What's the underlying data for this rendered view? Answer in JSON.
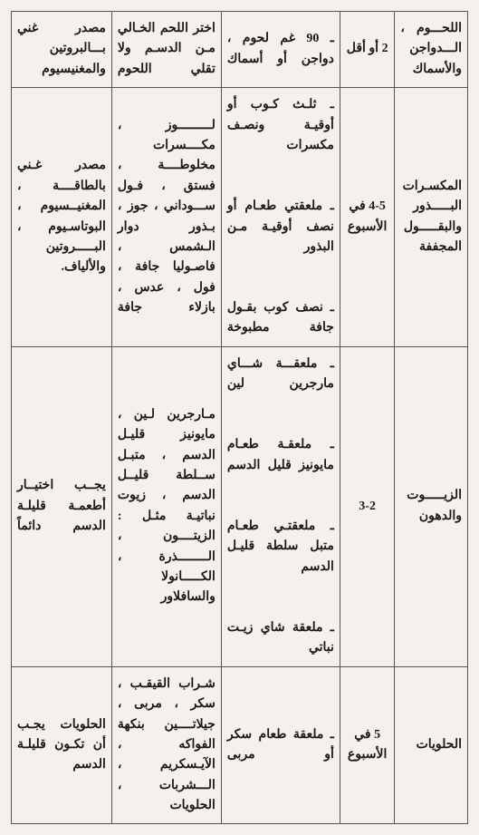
{
  "rows": [
    {
      "c1": "اللحـــوم ، الـــدواجن والأسماك",
      "c2": "2 أو أقل",
      "c3": "ـ 90 غم لحوم ، دواجن أو أسماك",
      "c4": "اختر اللحم الخـالي مـن الدسـم ولا تقلي اللحوم",
      "c5": "مصدر غني بـــالبروتين والمغنيسيوم"
    },
    {
      "c1": "المكسـرات البـــــذور والبقـــــول المجففة",
      "c2": "4-5 في الأسبوع",
      "c3": "ـ ثلـث كـوب أو أوقيـة ونصـف مكسرات\n\nـ ملعقتي طعـام أو نصف أوقيـة مـن البذور\n\nـ نصف كوب بقـول جافة مطبوخة",
      "c4": "لـــــــــوز ، مكــــسرات مخلوطــــة ، فستق ، فـول ســـوداني ، جوز ، بـذور دوار الـشمس ، فاصـوليا جافة ، فول ، عدس ، بازلاء جافة",
      "c5": "مصدر غـني بالطاقــــة ، المغنيــسيوم ، البوتاسـيوم ، البـــــروتين والألياف."
    },
    {
      "c1": "الزيـــــوت والدهون",
      "c2": "3-2",
      "c3": "ـ ملعقـــة شـــاي مارجرين لين\n\nـ ملعقـة طعـام مايونيز قليل الدسم\n\nـ ملعقتـي طعـام متبل سلطة قليـل الدسم\n\nـ ملعقة شاي زيـت نباتي",
      "c4": "مـارجرين لـين ، مايونيز قليـل الدسم ، متبـل ســلطة قليــل الدسم ، زيوت نباتيـة مثـل : الزيتــــون ، الــــــــذرة ، الكـــــانولا والسافلاور",
      "c5": "يجــب اختيــار أطعمـة قليلـة الدسم دائماً"
    },
    {
      "c1": "الحلويات",
      "c2": "5 في الأسبوع",
      "c3": "ـ ملعقة طعام سكر أو مربى",
      "c4": "شـراب القيقـب ، سكر ، مربى ، جيلاتــــين بنكهة الفواكه ، الآيـسكريم ، الـــشربات ، الحلويات",
      "c5": "الحلويات يجـب أن تكـون قليلـة الدسم"
    }
  ]
}
